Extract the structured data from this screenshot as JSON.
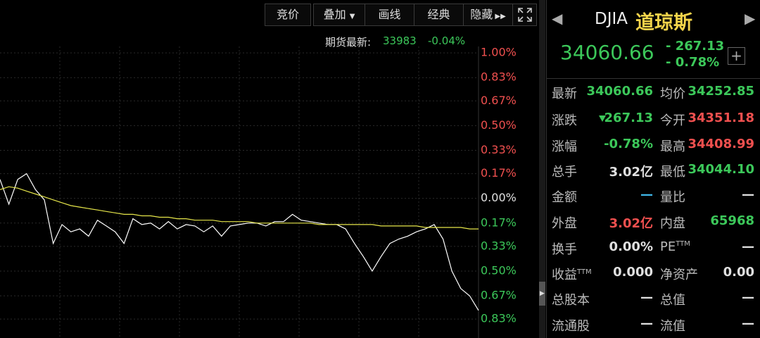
{
  "toolbar": {
    "buttons": [
      "竞价",
      "叠加",
      "画线",
      "经典",
      "隐藏"
    ]
  },
  "futures": {
    "label": "期货最新:",
    "price": "33983",
    "change": "-0.04%"
  },
  "chart_data": {
    "type": "line",
    "ylim": [
      -0.96,
      1.17
    ],
    "yticks": [
      {
        "value": 1.0,
        "label": "1.00%"
      },
      {
        "value": 0.83,
        "label": "0.83%"
      },
      {
        "value": 0.67,
        "label": "0.67%"
      },
      {
        "value": 0.5,
        "label": "0.50%"
      },
      {
        "value": 0.33,
        "label": "0.33%"
      },
      {
        "value": 0.17,
        "label": "0.17%"
      },
      {
        "value": 0,
        "label": "0.00%"
      },
      {
        "value": -0.17,
        "label": "0.17%"
      },
      {
        "value": -0.33,
        "label": "0.33%"
      },
      {
        "value": -0.5,
        "label": "0.50%"
      },
      {
        "value": -0.67,
        "label": "0.67%"
      },
      {
        "value": -0.83,
        "label": "0.83%"
      }
    ],
    "grid": true,
    "up_color": "#f0504f",
    "down_color": "#3cc85a",
    "flat_color": "#e0e0e0",
    "series": [
      {
        "color": "#ffffff",
        "values": [
          0.13,
          -0.04,
          0.13,
          0.17,
          0.06,
          -0.01,
          -0.31,
          -0.18,
          -0.23,
          -0.21,
          -0.26,
          -0.15,
          -0.19,
          -0.23,
          -0.31,
          -0.14,
          -0.18,
          -0.17,
          -0.21,
          -0.16,
          -0.21,
          -0.18,
          -0.19,
          -0.23,
          -0.19,
          -0.26,
          -0.19,
          -0.18,
          -0.17,
          -0.17,
          -0.19,
          -0.16,
          -0.16,
          -0.11,
          -0.15,
          -0.16,
          -0.17,
          -0.18,
          -0.18,
          -0.21,
          -0.31,
          -0.4,
          -0.5,
          -0.4,
          -0.31,
          -0.28,
          -0.26,
          -0.23,
          -0.21,
          -0.18,
          -0.28,
          -0.5,
          -0.62,
          -0.67,
          -0.77
        ]
      },
      {
        "color": "#e6e64a",
        "values": [
          0.06,
          0.08,
          0.07,
          0.05,
          0.03,
          0.01,
          -0.01,
          -0.03,
          -0.05,
          -0.06,
          -0.07,
          -0.08,
          -0.09,
          -0.1,
          -0.11,
          -0.11,
          -0.12,
          -0.12,
          -0.13,
          -0.13,
          -0.14,
          -0.14,
          -0.15,
          -0.15,
          -0.15,
          -0.16,
          -0.16,
          -0.16,
          -0.16,
          -0.17,
          -0.17,
          -0.17,
          -0.17,
          -0.17,
          -0.17,
          -0.17,
          -0.18,
          -0.18,
          -0.18,
          -0.18,
          -0.18,
          -0.18,
          -0.18,
          -0.19,
          -0.19,
          -0.19,
          -0.19,
          -0.19,
          -0.2,
          -0.2,
          -0.2,
          -0.2,
          -0.2,
          -0.21,
          -0.21
        ]
      }
    ]
  },
  "quote": {
    "symbol": "DJIA",
    "name": "道琼斯",
    "price": "34060.66",
    "change": "- 267.13",
    "change_pct": "- 0.78%",
    "color": "#3cc85a"
  },
  "stats": [
    [
      {
        "label": "最新",
        "value": "34060.66",
        "color": "#3cc85a"
      },
      {
        "label": "均价",
        "value": "34252.85",
        "color": "#3cc85a"
      }
    ],
    [
      {
        "label": "涨跌",
        "value": "267.13",
        "color": "#3cc85a"
      },
      {
        "label": "今开",
        "value": "34351.18",
        "color": "#f0504f"
      }
    ],
    [
      {
        "label": "涨幅",
        "value": "-0.78%",
        "color": "#3cc85a"
      },
      {
        "label": "最高",
        "value": "34408.99",
        "color": "#f0504f"
      }
    ],
    [
      {
        "label": "总手",
        "value": "3.02亿",
        "color": "#e0e0e0"
      },
      {
        "label": "最低",
        "value": "34044.10",
        "color": "#3cc85a"
      }
    ],
    [
      {
        "label": "金额",
        "value": "—",
        "color": "#3fb6e8"
      },
      {
        "label": "量比",
        "value": "—",
        "color": "#e0e0e0"
      }
    ],
    [
      {
        "label": "外盘",
        "value": "3.02亿",
        "color": "#f0504f"
      },
      {
        "label": "内盘",
        "value": "65968",
        "color": "#3cc85a"
      }
    ],
    [
      {
        "label": "换手",
        "value": "0.00%",
        "color": "#e0e0e0"
      },
      {
        "label": "PE",
        "sup": "TTM",
        "value": "—",
        "color": "#e0e0e0"
      }
    ],
    [
      {
        "label": "收益",
        "sup": "TTM",
        "value": "0.000",
        "color": "#e0e0e0"
      },
      {
        "label": "净资产",
        "value": "0.00",
        "color": "#e0e0e0"
      }
    ],
    [
      {
        "label": "总股本",
        "value": "—",
        "color": "#e0e0e0"
      },
      {
        "label": "总值",
        "value": "—",
        "color": "#e0e0e0"
      }
    ],
    [
      {
        "label": "流通股",
        "value": "—",
        "color": "#e0e0e0"
      },
      {
        "label": "流值",
        "value": "—",
        "color": "#e0e0e0"
      }
    ]
  ]
}
